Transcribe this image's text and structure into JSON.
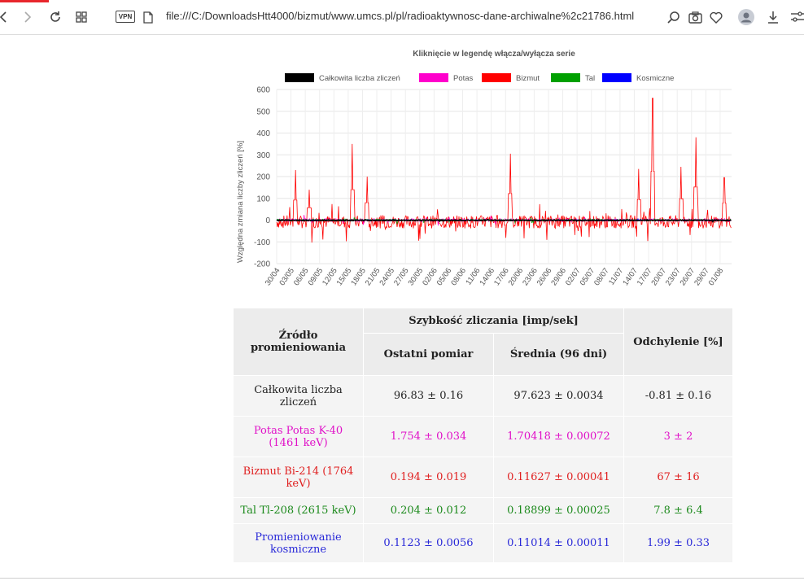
{
  "browser": {
    "url": "file:///C:/DownloadsHtt4000/bizmut/www.umcs.pl/pl/radioaktywnosc-dane-archiwalne%2c21786.html",
    "vpn_label": "VPN"
  },
  "chart_data": {
    "type": "line",
    "title": "Kliknięcie w legendę włącza/wyłącza serie",
    "ylabel": "Względna zmiana liczby zliczeń [%]",
    "xlabel": "",
    "ylim": [
      -200,
      600
    ],
    "yticks": [
      600,
      500,
      400,
      300,
      200,
      100,
      0,
      -100,
      -200
    ],
    "grid": true,
    "legend_position": "top",
    "categories": [
      "30/04",
      "03/05",
      "06/05",
      "09/05",
      "12/05",
      "15/05",
      "18/05",
      "21/05",
      "24/05",
      "27/05",
      "30/05",
      "02/06",
      "05/06",
      "08/06",
      "11/06",
      "14/06",
      "17/06",
      "20/06",
      "23/06",
      "26/06",
      "29/06",
      "02/07",
      "05/07",
      "08/07",
      "11/07",
      "14/07",
      "17/07",
      "20/07",
      "23/07",
      "26/07",
      "29/07",
      "01/08"
    ],
    "series": [
      {
        "name": "Całkowita liczba zliczeń",
        "color": "#000000"
      },
      {
        "name": "Potas",
        "color": "#ff00cc"
      },
      {
        "name": "Bizmut",
        "color": "#ff0000",
        "spikes": [
          {
            "x": "03/05",
            "y": 230
          },
          {
            "x": "06/05",
            "y": 140
          },
          {
            "x": "15/05",
            "y": 350
          },
          {
            "x": "18/05",
            "y": 200
          },
          {
            "x": "17/06",
            "y": 305
          },
          {
            "x": "14/07",
            "y": 235
          },
          {
            "x": "17/07",
            "y": 560
          },
          {
            "x": "23/07",
            "y": 245
          },
          {
            "x": "26/07",
            "y": 380
          },
          {
            "x": "01/08",
            "y": 195
          }
        ]
      },
      {
        "name": "Tal",
        "color": "#00a000"
      },
      {
        "name": "Kosmiczne",
        "color": "#0000ff"
      }
    ]
  },
  "table": {
    "header_source": "Źródło promieniowania",
    "header_rate": "Szybkość zliczania [imp/sek]",
    "header_last": "Ostatni pomiar",
    "header_mean": "Średnia (96 dni)",
    "header_dev": "Odchylenie [%]",
    "rows": [
      {
        "name": "Całkowita liczba zliczeń",
        "last": "96.83 ± 0.16",
        "mean": "97.623 ± 0.0034",
        "dev": "-0.81 ± 0.16"
      },
      {
        "name": "Potas Potas K-40 (1461 keV)",
        "last": "1.754 ± 0.034",
        "mean": "1.70418 ± 0.00072",
        "dev": "3 ± 2"
      },
      {
        "name": "Bizmut Bi-214 (1764 keV)",
        "last": "0.194 ± 0.019",
        "mean": "0.11627 ± 0.00041",
        "dev": "67 ± 16"
      },
      {
        "name": "Tal Tl-208 (2615 keV)",
        "last": "0.204 ± 0.012",
        "mean": "0.18899 ± 0.00025",
        "dev": "7.8 ± 6.4"
      },
      {
        "name": "Promieniowanie kosmiczne",
        "last": "0.1123 ± 0.0056",
        "mean": "0.11014 ± 0.00011",
        "dev": "1.99 ± 0.33"
      }
    ]
  }
}
